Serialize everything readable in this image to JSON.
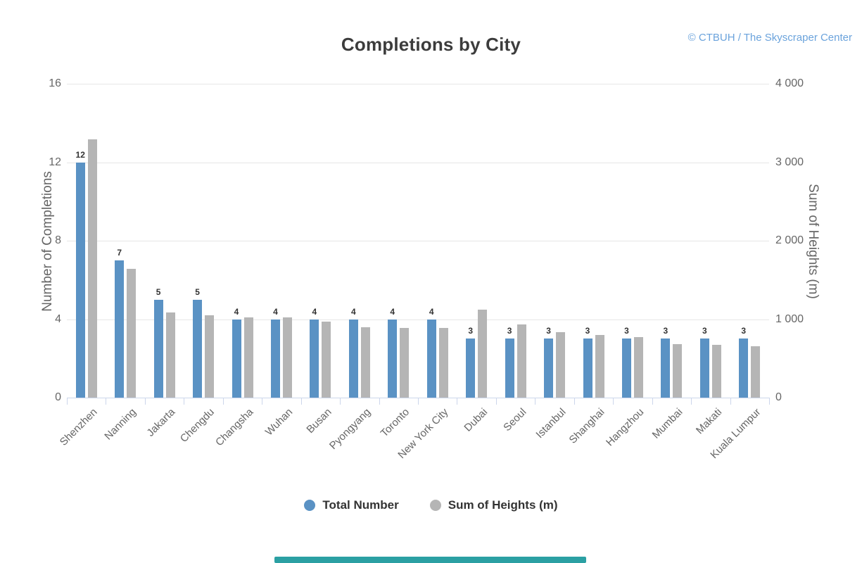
{
  "page": {
    "credits": "© CTBUH / The Skyscraper Center"
  },
  "chart_data": {
    "type": "bar",
    "title": "Completions by City",
    "categories": [
      "Shenzhen",
      "Nanning",
      "Jakarta",
      "Chengdu",
      "Changsha",
      "Wuhan",
      "Busan",
      "Pyongyang",
      "Toronto",
      "New York City",
      "Dubai",
      "Seoul",
      "Istanbul",
      "Shanghai",
      "Hangzhou",
      "Mumbai",
      "Makati",
      "Kuala Lumpur"
    ],
    "series": [
      {
        "name": "Total Number",
        "axis": "left",
        "color": "#5a92c4",
        "data_labels": true,
        "values": [
          12,
          7,
          5,
          5,
          4,
          4,
          4,
          4,
          4,
          4,
          3,
          3,
          3,
          3,
          3,
          3,
          3,
          3
        ]
      },
      {
        "name": "Sum of Heights (m)",
        "axis": "right",
        "color": "#b5b5b5",
        "data_labels": false,
        "values": [
          3290,
          1640,
          1085,
          1050,
          1025,
          1020,
          970,
          900,
          890,
          885,
          1120,
          935,
          835,
          800,
          770,
          680,
          675,
          655
        ]
      }
    ],
    "left_axis": {
      "label": "Number of Completions",
      "range": [
        0,
        16
      ],
      "ticks": [
        0,
        4,
        8,
        12,
        16
      ],
      "tick_labels": [
        "0",
        "4",
        "8",
        "12",
        "16"
      ]
    },
    "right_axis": {
      "label": "Sum of Heights (m)",
      "range": [
        0,
        4000
      ],
      "ticks": [
        0,
        1000,
        2000,
        3000,
        4000
      ],
      "tick_labels": [
        "0",
        "1 000",
        "2 000",
        "3 000",
        "4 000"
      ]
    },
    "legend": [
      {
        "label": "Total Number",
        "color": "#5a92c4"
      },
      {
        "label": "Sum of Heights (m)",
        "color": "#b5b5b5"
      }
    ],
    "grid": true,
    "legend_position": "bottom"
  },
  "colors": {
    "grid": "#e6e6e6",
    "axis_line": "#ccd6eb",
    "tick_text": "#666666",
    "title_text": "#3c3c3c",
    "credits_text": "#6ba3dc",
    "bottom_bar": "#2ba0a3"
  },
  "bottom_bar": {}
}
